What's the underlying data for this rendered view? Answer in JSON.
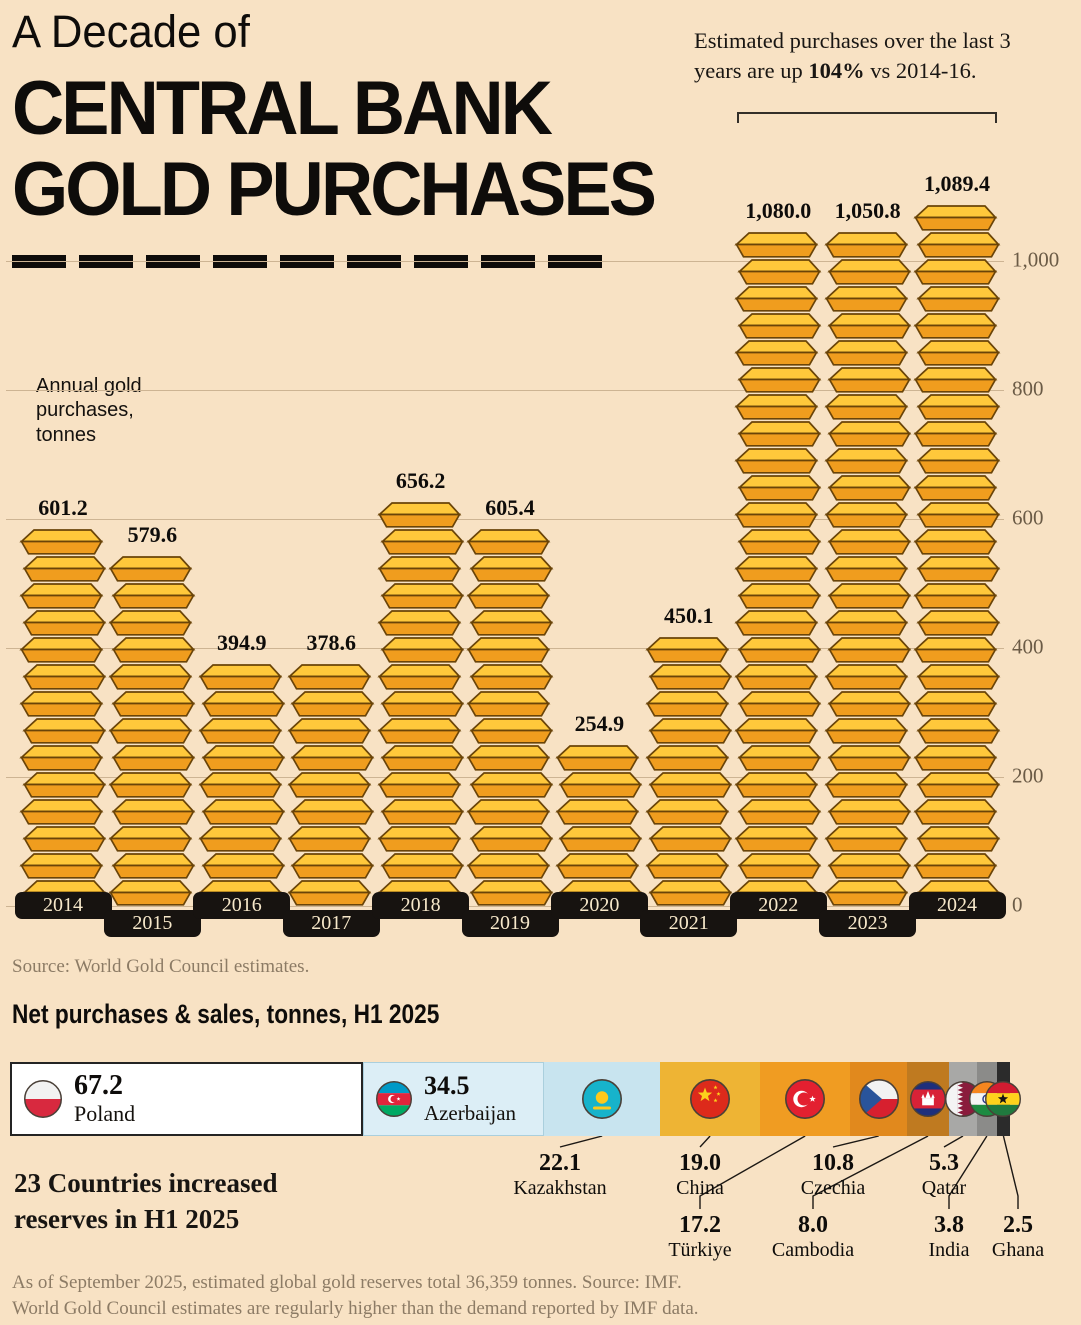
{
  "page": {
    "bg": "#f8e2c4",
    "title_line1": "A Decade of",
    "title_line2": "CENTRAL BANK",
    "title_line3": "GOLD PURCHASES",
    "source": "Source: World Gold Council estimates."
  },
  "annotation": {
    "pre": "Estimated purchases over the last 3 years are up ",
    "bold": "104%",
    "post": " vs 2014-16."
  },
  "note": {
    "line1": "23 Countries increased",
    "line2": "reserves in H1 2025"
  },
  "footer": {
    "line1": "As of September 2025, estimated global gold reserves total 36,359 tonnes. Source: IMF.",
    "line2": "World Gold Council estimates are regularly higher than the demand reported by IMF data."
  },
  "chart_data": [
    {
      "type": "bar",
      "title": "A Decade of Central Bank Gold Purchases",
      "ylabel": "Annual gold purchases, tonnes",
      "categories": [
        "2014",
        "2015",
        "2016",
        "2017",
        "2018",
        "2019",
        "2020",
        "2021",
        "2022",
        "2023",
        "2024"
      ],
      "values": [
        601.2,
        579.6,
        394.9,
        378.6,
        656.2,
        605.4,
        254.9,
        450.1,
        1080.0,
        1050.8,
        1089.4
      ],
      "value_labels": [
        "601.2",
        "579.6",
        "394.9",
        "378.6",
        "656.2",
        "605.4",
        "254.9",
        "450.1",
        "1,080.0",
        "1,050.8",
        "1,089.4"
      ],
      "ylim": [
        0,
        1089.4
      ],
      "yticks": [
        0,
        200,
        400,
        600,
        800,
        1000
      ],
      "ytick_labels": [
        "0",
        "200",
        "400",
        "600",
        "800",
        "1,000"
      ],
      "grid": true,
      "legend": "none",
      "bar_color": "#f09d1e",
      "annotation": "Estimated purchases over the last 3 years are up 104% vs 2014-16."
    },
    {
      "type": "bar",
      "orientation": "horizontal-stacked",
      "title": "Net purchases & sales, tonnes, H1 2025",
      "categories": [
        "Poland",
        "Azerbaijan",
        "Kazakhstan",
        "China",
        "Türkiye",
        "Czechia",
        "Cambodia",
        "Qatar",
        "India",
        "Ghana"
      ],
      "values": [
        67.2,
        34.5,
        22.1,
        19.0,
        17.2,
        10.8,
        8.0,
        5.3,
        3.8,
        2.5
      ]
    }
  ],
  "h1_segments": [
    {
      "country": "Poland",
      "value": 67.2,
      "value_label": "67.2",
      "color": "#ffffff",
      "flag": "poland-flag",
      "label_inside": true
    },
    {
      "country": "Azerbaijan",
      "value": 34.5,
      "value_label": "34.5",
      "color": "#dceef6",
      "flag": "azerbaijan-flag",
      "label_inside": true
    },
    {
      "country": "Kazakhstan",
      "value": 22.1,
      "value_label": "22.1",
      "color": "#c8e4ef",
      "flag": "kazakhstan-flag",
      "row": 1
    },
    {
      "country": "China",
      "value": 19.0,
      "value_label": "19.0",
      "color": "#eeb434",
      "flag": "china-flag",
      "row": 1
    },
    {
      "country": "Türkiye",
      "value": 17.2,
      "value_label": "17.2",
      "color": "#f09c22",
      "flag": "turkiye-flag",
      "row": 2
    },
    {
      "country": "Czechia",
      "value": 10.8,
      "value_label": "10.8",
      "color": "#e1891d",
      "flag": "czechia-flag",
      "row": 1
    },
    {
      "country": "Cambodia",
      "value": 8.0,
      "value_label": "8.0",
      "color": "#bf7a20",
      "flag": "cambodia-flag",
      "row": 2
    },
    {
      "country": "Qatar",
      "value": 5.3,
      "value_label": "5.3",
      "color": "#a8a8a6",
      "flag": "qatar-flag",
      "row": 1
    },
    {
      "country": "India",
      "value": 3.8,
      "value_label": "3.8",
      "color": "#8b8b89",
      "flag": "india-flag",
      "row": 2
    },
    {
      "country": "Ghana",
      "value": 2.5,
      "value_label": "2.5",
      "color": "#2b2b2b",
      "flag": "ghana-flag",
      "row": 2
    }
  ]
}
